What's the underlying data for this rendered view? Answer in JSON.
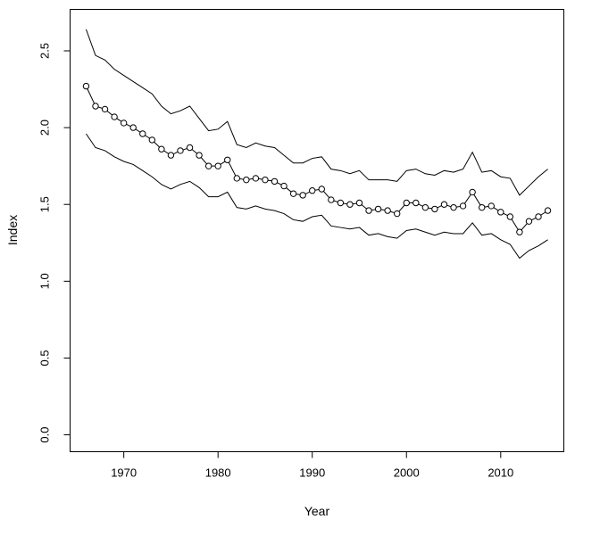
{
  "chart_data": {
    "type": "line",
    "title": "",
    "xlabel": "Year",
    "ylabel": "Index",
    "xlim": [
      1964.3,
      2016.7
    ],
    "ylim": [
      -0.11,
      2.77
    ],
    "x_ticks": [
      1970,
      1980,
      1990,
      2000,
      2010
    ],
    "y_ticks": [
      0.0,
      0.5,
      1.0,
      1.5,
      2.0,
      2.5
    ],
    "x_tick_labels": [
      "1970",
      "1980",
      "1990",
      "2000",
      "2010"
    ],
    "y_tick_labels": [
      "0.0",
      "0.5",
      "1.0",
      "1.5",
      "2.0",
      "2.5"
    ],
    "grid": false,
    "legend": "none",
    "x": [
      1966,
      1967,
      1968,
      1969,
      1970,
      1971,
      1972,
      1973,
      1974,
      1975,
      1976,
      1977,
      1978,
      1979,
      1980,
      1981,
      1982,
      1983,
      1984,
      1985,
      1986,
      1987,
      1988,
      1989,
      1990,
      1991,
      1992,
      1993,
      1994,
      1995,
      1996,
      1997,
      1998,
      1999,
      2000,
      2001,
      2002,
      2003,
      2004,
      2005,
      2006,
      2007,
      2008,
      2009,
      2010,
      2011,
      2012,
      2013,
      2014,
      2015
    ],
    "series": [
      {
        "role": "upper",
        "marker": "none",
        "values": [
          2.64,
          2.47,
          2.44,
          2.38,
          2.34,
          2.3,
          2.26,
          2.22,
          2.14,
          2.09,
          2.11,
          2.14,
          2.06,
          1.98,
          1.99,
          2.04,
          1.89,
          1.87,
          1.9,
          1.88,
          1.87,
          1.82,
          1.77,
          1.77,
          1.8,
          1.81,
          1.73,
          1.72,
          1.7,
          1.72,
          1.66,
          1.66,
          1.66,
          1.65,
          1.72,
          1.73,
          1.7,
          1.69,
          1.72,
          1.71,
          1.73,
          1.84,
          1.71,
          1.72,
          1.68,
          1.67,
          1.56,
          1.62,
          1.68,
          1.73
        ]
      },
      {
        "role": "estimate",
        "marker": "circle",
        "values": [
          2.27,
          2.14,
          2.12,
          2.07,
          2.03,
          2.0,
          1.96,
          1.92,
          1.86,
          1.82,
          1.85,
          1.87,
          1.82,
          1.75,
          1.75,
          1.79,
          1.67,
          1.66,
          1.67,
          1.66,
          1.65,
          1.62,
          1.57,
          1.56,
          1.59,
          1.6,
          1.53,
          1.51,
          1.5,
          1.51,
          1.46,
          1.47,
          1.46,
          1.44,
          1.51,
          1.51,
          1.48,
          1.47,
          1.5,
          1.48,
          1.49,
          1.58,
          1.48,
          1.49,
          1.45,
          1.42,
          1.32,
          1.39,
          1.42,
          1.46
        ]
      },
      {
        "role": "lower",
        "marker": "none",
        "values": [
          1.96,
          1.87,
          1.85,
          1.81,
          1.78,
          1.76,
          1.72,
          1.68,
          1.63,
          1.6,
          1.63,
          1.65,
          1.61,
          1.55,
          1.55,
          1.58,
          1.48,
          1.47,
          1.49,
          1.47,
          1.46,
          1.44,
          1.4,
          1.39,
          1.42,
          1.43,
          1.36,
          1.35,
          1.34,
          1.35,
          1.3,
          1.31,
          1.29,
          1.28,
          1.33,
          1.34,
          1.32,
          1.3,
          1.32,
          1.31,
          1.31,
          1.38,
          1.3,
          1.31,
          1.27,
          1.24,
          1.15,
          1.2,
          1.23,
          1.27
        ]
      }
    ],
    "colors": {
      "line": "#000000",
      "background": "#ffffff"
    }
  }
}
